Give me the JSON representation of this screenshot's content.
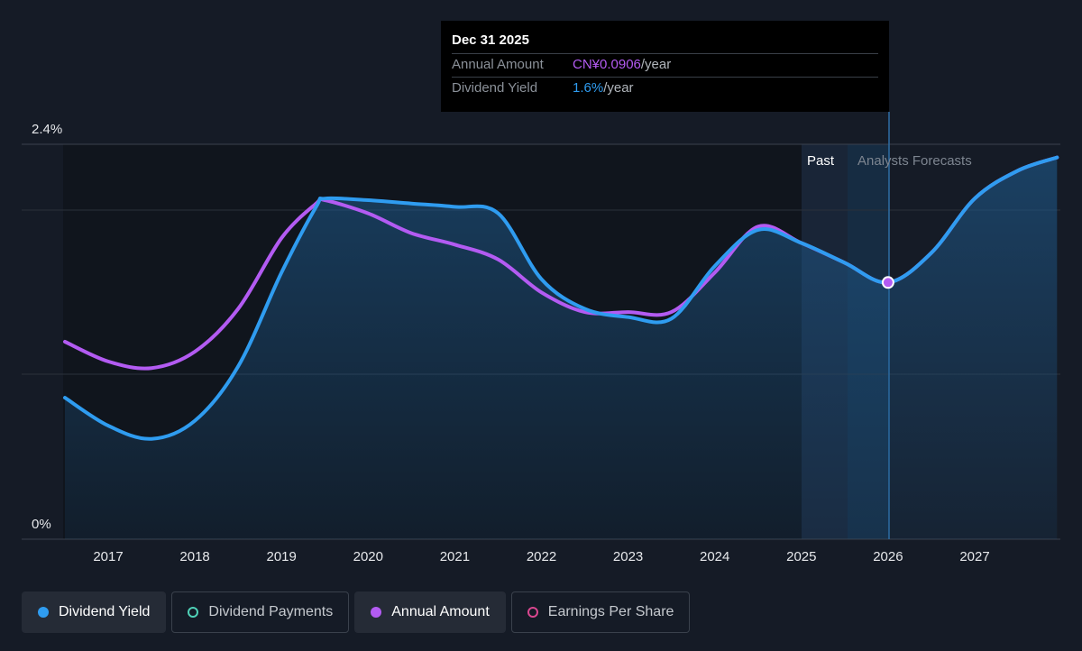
{
  "chart_data": {
    "type": "line",
    "y_axis": {
      "min": 0,
      "max": 2.4,
      "unit": "%",
      "tick_labels": [
        "2.4%",
        "0%"
      ]
    },
    "x_axis": {
      "ticks": [
        "2017",
        "2018",
        "2019",
        "2020",
        "2021",
        "2022",
        "2023",
        "2024",
        "2025",
        "2026",
        "2027"
      ]
    },
    "regions": {
      "past_label": "Past",
      "forecast_label": "Analysts Forecasts"
    },
    "series": [
      {
        "name": "Dividend Yield",
        "color": "#2f9cf0",
        "x": [
          2016.5,
          2017.0,
          2017.5,
          2018.0,
          2018.5,
          2019.0,
          2019.4,
          2019.5,
          2020.0,
          2020.5,
          2021.0,
          2021.5,
          2022.0,
          2022.5,
          2023.0,
          2023.5,
          2024.0,
          2024.5,
          2025.0,
          2025.5,
          2026.0,
          2026.5,
          2027.0,
          2027.5,
          2027.95
        ],
        "y": [
          0.86,
          0.69,
          0.61,
          0.72,
          1.05,
          1.62,
          2.02,
          2.07,
          2.06,
          2.04,
          2.02,
          1.98,
          1.58,
          1.4,
          1.35,
          1.34,
          1.66,
          1.88,
          1.8,
          1.68,
          1.56,
          1.74,
          2.07,
          2.24,
          2.32
        ]
      },
      {
        "name": "Annual Amount",
        "color": "#b35bf2",
        "x": [
          2016.5,
          2017.0,
          2017.5,
          2018.0,
          2018.5,
          2019.0,
          2019.4,
          2019.5,
          2020.0,
          2020.5,
          2021.0,
          2021.5,
          2022.0,
          2022.5,
          2023.0,
          2023.5,
          2024.0,
          2024.5,
          2025.0,
          2025.5,
          2026.0,
          2026.5,
          2027.0,
          2027.5,
          2027.95
        ],
        "y": [
          1.2,
          1.08,
          1.04,
          1.14,
          1.4,
          1.83,
          2.04,
          2.06,
          1.98,
          1.86,
          1.79,
          1.7,
          1.5,
          1.38,
          1.38,
          1.38,
          1.62,
          1.9,
          1.8,
          1.68,
          1.56,
          1.74,
          2.07,
          2.24,
          2.32
        ]
      }
    ],
    "highlight": {
      "x": 2026.0,
      "y": 1.56,
      "date": "Dec 31 2025",
      "rows": [
        {
          "label": "Annual Amount",
          "value": "CN¥0.0906",
          "suffix": "/year"
        },
        {
          "label": "Dividend Yield",
          "value": "1.6%",
          "suffix": "/year"
        }
      ]
    },
    "legend": [
      {
        "label": "Dividend Yield",
        "color": "#2f9cf0",
        "active": true,
        "style": "filled"
      },
      {
        "label": "Dividend Payments",
        "color": "#4fd1b7",
        "active": false,
        "style": "ring"
      },
      {
        "label": "Annual Amount",
        "color": "#b35bf2",
        "active": true,
        "style": "filled"
      },
      {
        "label": "Earnings Per Share",
        "color": "#d9478f",
        "active": false,
        "style": "ring"
      }
    ]
  }
}
